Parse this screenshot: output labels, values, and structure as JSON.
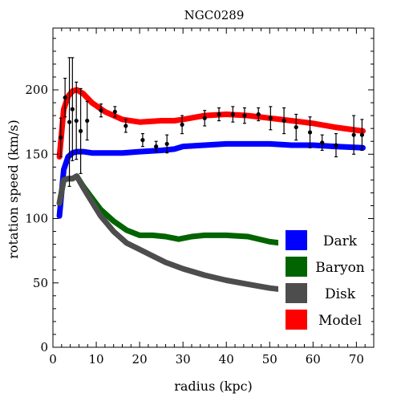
{
  "chart_data": {
    "type": "line",
    "title": "NGC0289",
    "xlabel": "radius (kpc)",
    "ylabel": "rotation speed (km/s)",
    "xlim": [
      0,
      74
    ],
    "ylim": [
      0,
      248
    ],
    "x_ticks": [
      0,
      10,
      20,
      30,
      40,
      50,
      60,
      70
    ],
    "y_ticks": [
      0,
      50,
      100,
      150,
      200
    ],
    "legend_position": "bottom-right",
    "series": [
      {
        "name": "Dark",
        "color": "#0000ff",
        "x": [
          1.5,
          2.5,
          3.5,
          4.5,
          5.5,
          7,
          9,
          12,
          16,
          20,
          25,
          28,
          30,
          35,
          40,
          45,
          50,
          55,
          60,
          65,
          71.5
        ],
        "y": [
          102,
          138,
          148,
          151,
          152,
          152,
          151,
          151,
          151,
          152,
          153,
          154,
          156,
          157,
          158,
          158,
          158,
          157,
          157,
          156,
          155
        ]
      },
      {
        "name": "Baryon",
        "color": "#006400",
        "x": [
          1.5,
          2.5,
          3.5,
          4.5,
          5.5,
          7,
          9,
          11,
          14,
          17,
          20,
          23,
          26,
          29,
          32,
          35,
          40,
          45,
          50,
          55,
          60,
          65,
          71.5
        ],
        "y": [
          112,
          130,
          131,
          131,
          133,
          125,
          116,
          107,
          98,
          91,
          87,
          87,
          86,
          84,
          86,
          87,
          87,
          86,
          82,
          80,
          76,
          72,
          70
        ]
      },
      {
        "name": "Disk",
        "color": "#4d4d4d",
        "x": [
          1.5,
          2.5,
          3.5,
          4.5,
          5.5,
          7,
          9,
          11,
          14,
          17,
          20,
          23,
          26,
          30,
          35,
          40,
          45,
          50,
          55,
          60,
          65,
          71.5
        ],
        "y": [
          112,
          130,
          131,
          131,
          133,
          124,
          113,
          102,
          90,
          81,
          76,
          71,
          66,
          61,
          56,
          52,
          49,
          46,
          44,
          42,
          40,
          39
        ]
      },
      {
        "name": "Model",
        "color": "#ff0000",
        "x": [
          1.5,
          2.5,
          3.5,
          4.5,
          5.5,
          7,
          9,
          12,
          16,
          20,
          25,
          28,
          30,
          35,
          40,
          45,
          50,
          55,
          60,
          65,
          71.5
        ],
        "y": [
          148,
          185,
          195,
          199,
          200,
          197,
          190,
          183,
          177,
          175,
          176,
          176,
          177,
          180,
          181,
          180,
          178,
          176,
          174,
          171,
          168
        ]
      }
    ],
    "observed": {
      "x": [
        1.8,
        2.8,
        3.8,
        4.5,
        5.4,
        6.4,
        7.9,
        11.1,
        14.3,
        16.8,
        20.7,
        23.8,
        26.3,
        29.8,
        35,
        38.3,
        41.5,
        44.2,
        47.4,
        50.2,
        53.3,
        56.1,
        59.3,
        62.1,
        65.3,
        69.4,
        71.3
      ],
      "y": [
        163,
        194,
        175,
        185,
        176,
        168,
        176,
        184,
        183,
        172,
        161,
        156,
        158,
        173,
        178,
        181,
        181,
        180,
        181,
        178,
        176,
        171,
        167,
        159,
        157,
        165,
        165
      ],
      "err": [
        15,
        15,
        50,
        40,
        30,
        33,
        15,
        5,
        4,
        5,
        5,
        4,
        7,
        7,
        6,
        5,
        6,
        6,
        5,
        9,
        10,
        10,
        12,
        6,
        9,
        15,
        12
      ]
    }
  }
}
